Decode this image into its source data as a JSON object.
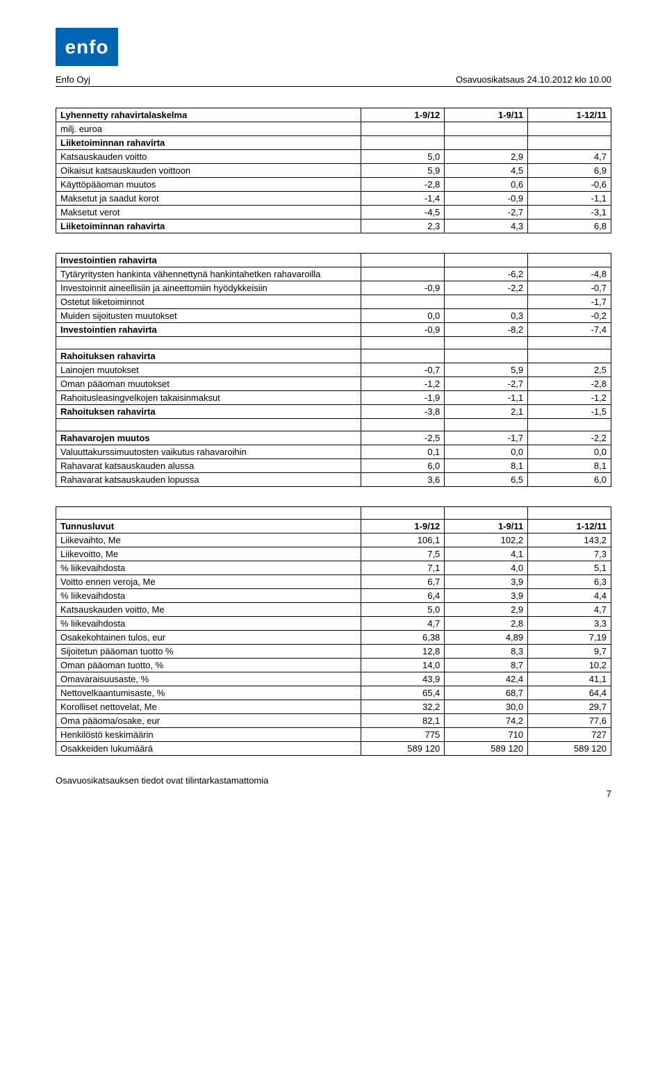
{
  "header": {
    "logo_text": "enfo",
    "company": "Enfo Oyj",
    "doc_title": "Osavuosikatsaus 24.10.2012 klo 10.00"
  },
  "table1": {
    "title": "Lyhennetty rahavirtalaskelma",
    "subtitle": "milj. euroa",
    "cols": [
      "1-9/12",
      "1-9/11",
      "1-12/11"
    ],
    "section1_title": "Liiketoiminnan rahavirta",
    "rows1": [
      {
        "label": "Katsauskauden voitto",
        "v": [
          "5,0",
          "2,9",
          "4,7"
        ]
      },
      {
        "label": "Oikaisut katsauskauden voittoon",
        "v": [
          "5,9",
          "4,5",
          "6,9"
        ]
      },
      {
        "label": "Käyttöpääoman muutos",
        "v": [
          "-2,8",
          "0,6",
          "-0,6"
        ]
      },
      {
        "label": "Maksetut ja saadut korot",
        "v": [
          "-1,4",
          "-0,9",
          "-1,1"
        ]
      },
      {
        "label": "Maksetut verot",
        "v": [
          "-4,5",
          "-2,7",
          "-3,1"
        ]
      }
    ],
    "total1": {
      "label": "Liiketoiminnan rahavirta",
      "v": [
        "2,3",
        "4,3",
        "6,8"
      ]
    }
  },
  "table2": {
    "section1_title": "Investointien rahavirta",
    "rows1": [
      {
        "label": "Tytäryritysten hankinta vähennettynä hankintahetken rahavaroilla",
        "v": [
          "",
          "-6,2",
          "-4,8"
        ]
      },
      {
        "label": "Investoinnit aineellisiin ja aineettomiin hyödykkeisiin",
        "v": [
          "-0,9",
          "-2,2",
          "-0,7"
        ]
      },
      {
        "label": "Ostetut liiketoiminnot",
        "v": [
          "",
          "",
          "-1,7"
        ]
      },
      {
        "label": "Muiden sijoitusten muutokset",
        "v": [
          "0,0",
          "0,3",
          "-0,2"
        ]
      }
    ],
    "total1": {
      "label": "Investointien rahavirta",
      "v": [
        "-0,9",
        "-8,2",
        "-7,4"
      ]
    },
    "section2_title": "Rahoituksen rahavirta",
    "rows2": [
      {
        "label": "Lainojen muutokset",
        "v": [
          "-0,7",
          "5,9",
          "2,5"
        ]
      },
      {
        "label": "Oman pääoman muutokset",
        "v": [
          "-1,2",
          "-2,7",
          "-2,8"
        ]
      },
      {
        "label": "Rahoitusleasingvelkojen takaisinmaksut",
        "v": [
          "-1,9",
          "-1,1",
          "-1,2"
        ]
      }
    ],
    "total2": {
      "label": "Rahoituksen rahavirta",
      "v": [
        "-3,8",
        "2,1",
        "-1,5"
      ]
    },
    "rows3": [
      {
        "label": "Rahavarojen muutos",
        "v": [
          "-2,5",
          "-1,7",
          "-2,2"
        ],
        "bold": true
      },
      {
        "label": "Valuuttakurssimuutosten vaikutus rahavaroihin",
        "v": [
          "0,1",
          "0,0",
          "0,0"
        ]
      },
      {
        "label": "Rahavarat katsauskauden alussa",
        "v": [
          "6,0",
          "8,1",
          "8,1"
        ]
      },
      {
        "label": "Rahavarat katsauskauden lopussa",
        "v": [
          "3,6",
          "6,5",
          "6,0"
        ]
      }
    ]
  },
  "table3": {
    "title": "Tunnusluvut",
    "cols": [
      "1-9/12",
      "1-9/11",
      "1-12/11"
    ],
    "rows": [
      {
        "label": "Liikevaihto, Me",
        "v": [
          "106,1",
          "102,2",
          "143,2"
        ]
      },
      {
        "label": "Liikevoitto, Me",
        "v": [
          "7,5",
          "4,1",
          "7,3"
        ]
      },
      {
        "label": "% liikevaihdosta",
        "v": [
          "7,1",
          "4,0",
          "5,1"
        ]
      },
      {
        "label": "Voitto ennen veroja, Me",
        "v": [
          "6,7",
          "3,9",
          "6,3"
        ]
      },
      {
        "label": "% liikevaihdosta",
        "v": [
          "6,4",
          "3,9",
          "4,4"
        ]
      },
      {
        "label": "Katsauskauden voitto, Me",
        "v": [
          "5,0",
          "2,9",
          "4,7"
        ]
      },
      {
        "label": "% liikevaihdosta",
        "v": [
          "4,7",
          "2,8",
          "3,3"
        ]
      },
      {
        "label": "Osakekohtainen tulos, eur",
        "v": [
          "6,38",
          "4,89",
          "7,19"
        ]
      },
      {
        "label": "Sijoitetun pääoman tuotto %",
        "v": [
          "12,8",
          "8,3",
          "9,7"
        ]
      },
      {
        "label": "Oman pääoman tuotto, %",
        "v": [
          "14,0",
          "8,7",
          "10,2"
        ]
      },
      {
        "label": "Omavaraisuusaste, %",
        "v": [
          "43,9",
          "42,4",
          "41,1"
        ]
      },
      {
        "label": "Nettovelkaantumisaste, %",
        "v": [
          "65,4",
          "68,7",
          "64,4"
        ]
      },
      {
        "label": "Korolliset nettovelat, Me",
        "v": [
          "32,2",
          "30,0",
          "29,7"
        ]
      },
      {
        "label": "Oma pääoma/osake, eur",
        "v": [
          "82,1",
          "74,2",
          "77,6"
        ]
      },
      {
        "label": "Henkilöstö keskimäärin",
        "v": [
          "775",
          "710",
          "727"
        ]
      },
      {
        "label": "Osakkeiden lukumäärä",
        "v": [
          "589 120",
          "589 120",
          "589 120"
        ]
      }
    ]
  },
  "footer": {
    "text": "Osavuosikatsauksen tiedot ovat tilintarkastamattomia",
    "page": "7"
  },
  "colors": {
    "logo_bg": "#0066b3",
    "logo_text": "#ffffff",
    "border": "#000000",
    "text": "#000000",
    "background": "#ffffff"
  }
}
